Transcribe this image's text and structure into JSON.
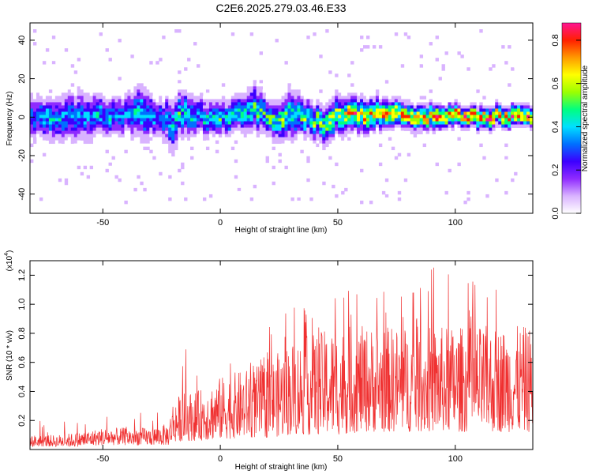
{
  "chart_data": [
    {
      "type": "heatmap",
      "title": "C2E6.2025.279.03.46.E33",
      "xlabel": "Height of straight line (km)",
      "ylabel": "Frequency (Hz)",
      "xlim": [
        -81,
        133
      ],
      "ylim": [
        -50,
        49
      ],
      "xticks": [
        -50,
        0,
        50,
        100
      ],
      "xtick_labels": [
        "-50",
        "0",
        "50",
        "100"
      ],
      "yticks": [
        -40,
        -20,
        0,
        20,
        40
      ],
      "ytick_labels": [
        "-40",
        "-20",
        "0",
        "20",
        "40"
      ],
      "colorbar": {
        "label": "Normalized spectral amplitude",
        "range": [
          0,
          0.88
        ],
        "ticks": [
          0.0,
          0.2,
          0.4,
          0.6,
          0.8
        ],
        "tick_labels": [
          "0.0",
          "0.2",
          "0.4",
          "0.6",
          "0.8"
        ],
        "colors": [
          "#ffffff",
          "#d9b3ff",
          "#8f2bff",
          "#3b00ff",
          "#0070ff",
          "#00e0ff",
          "#00ff80",
          "#9cff00",
          "#ffff00",
          "#ff9900",
          "#ff2000",
          "#ff1493"
        ]
      },
      "ridge": {
        "description_points_x": [
          -80,
          -70,
          -60,
          -50,
          -40,
          -33,
          -27,
          -20,
          -18,
          -10,
          0,
          10,
          15,
          20,
          25,
          30,
          35,
          40,
          45,
          50,
          60,
          70,
          80,
          90,
          100,
          110,
          120,
          133
        ],
        "center_freq": [
          0,
          -2,
          2,
          0,
          1,
          3,
          0,
          -4,
          2,
          1,
          0,
          2,
          4,
          0,
          -2,
          3,
          0,
          -2,
          -5,
          2,
          1,
          2,
          0,
          1,
          1,
          0,
          0,
          0
        ],
        "half_width_hz": [
          10,
          10,
          12,
          9,
          9,
          13,
          8,
          12,
          11,
          9,
          8,
          9,
          11,
          8,
          9,
          12,
          8,
          8,
          9,
          9,
          8,
          7,
          6,
          6,
          5,
          5,
          5,
          5
        ],
        "peak_amplitude": [
          0.35,
          0.4,
          0.35,
          0.4,
          0.35,
          0.45,
          0.35,
          0.45,
          0.45,
          0.4,
          0.45,
          0.45,
          0.5,
          0.5,
          0.55,
          0.45,
          0.55,
          0.55,
          0.6,
          0.6,
          0.75,
          0.7,
          0.75,
          0.75,
          0.8,
          0.8,
          0.8,
          0.8
        ]
      }
    },
    {
      "type": "line",
      "xlabel": "Height of straight line (km)",
      "ylabel": "SNR (10 * v/v)",
      "y_multiplier_label": "(x10",
      "y_multiplier_exp": "4",
      "y_multiplier_close": ")",
      "xlim": [
        -81,
        133
      ],
      "ylim": [
        0,
        1.3
      ],
      "xticks": [
        -50,
        0,
        50,
        100
      ],
      "xtick_labels": [
        "-50",
        "0",
        "50",
        "100"
      ],
      "yticks": [
        0.2,
        0.4,
        0.6,
        0.8,
        1.0,
        1.2
      ],
      "ytick_labels": [
        "0.2",
        "0.4",
        "0.6",
        "0.8",
        "1.0",
        "1.2"
      ],
      "color": "#f03030",
      "envelope": {
        "x": [
          -80,
          -70,
          -60,
          -50,
          -40,
          -30,
          -22,
          -20,
          -15,
          -10,
          0,
          10,
          20,
          30,
          40,
          50,
          60,
          70,
          80,
          90,
          100,
          110,
          120,
          133
        ],
        "typical_max": [
          0.1,
          0.1,
          0.12,
          0.15,
          0.15,
          0.15,
          0.18,
          0.35,
          0.4,
          0.4,
          0.5,
          0.55,
          0.6,
          0.75,
          0.8,
          0.85,
          0.85,
          0.85,
          0.85,
          0.85,
          0.85,
          0.85,
          0.85,
          0.85
        ],
        "peak_max": [
          0.22,
          0.22,
          0.25,
          0.27,
          0.27,
          0.3,
          0.3,
          0.46,
          0.7,
          0.6,
          0.72,
          0.8,
          0.84,
          0.97,
          1.05,
          1.22,
          1.12,
          1.14,
          1.13,
          1.3,
          1.22,
          1.15,
          1.14,
          1.2
        ],
        "typical_min": [
          0.02,
          0.02,
          0.02,
          0.03,
          0.03,
          0.03,
          0.03,
          0.05,
          0.06,
          0.06,
          0.07,
          0.08,
          0.08,
          0.1,
          0.1,
          0.1,
          0.12,
          0.12,
          0.12,
          0.12,
          0.12,
          0.12,
          0.12,
          0.12
        ]
      }
    }
  ]
}
